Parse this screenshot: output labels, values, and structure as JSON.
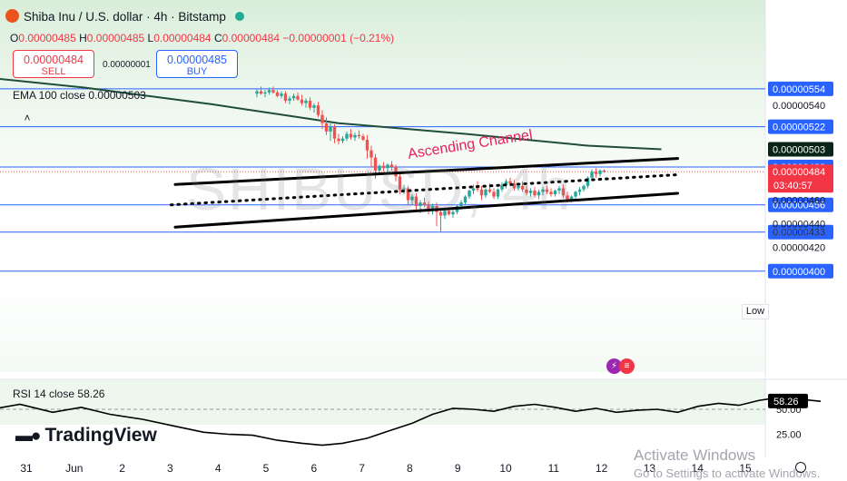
{
  "header": {
    "title": "Shiba Inu / U.S. dollar · 4h · Bitstamp",
    "ohlc": [
      {
        "k": "O",
        "v": "0.00000485"
      },
      {
        "k": "H",
        "v": "0.00000485"
      },
      {
        "k": "L",
        "v": "0.00000484"
      },
      {
        "k": "C",
        "v": "0.00000484"
      },
      {
        "k": "",
        "v": "−0.00000001 (−0.21%)"
      }
    ]
  },
  "trade": {
    "sell_price": "0.00000484",
    "sell_label": "SELL",
    "spread": "0.00000001",
    "buy_price": "0.00000485",
    "buy_label": "BUY"
  },
  "ema_legend": {
    "label": "EMA 100 close",
    "value": "0.00000503"
  },
  "rsi_legend": {
    "label": "RSI 14 close",
    "value": "58.26"
  },
  "brand": {
    "name": "TradingView"
  },
  "watermark": "SHIBUSD, 4h",
  "annotation": "Ascending Channel",
  "low_label": "Low",
  "os_overlay": {
    "line1": "Activate Windows",
    "line2": "Go to Settings to activate Windows."
  },
  "colors": {
    "up": "#26a69a",
    "down": "#ef5350",
    "ema": "#1f4d3a",
    "hline": "#2962ff",
    "channel": "#000000",
    "annotation": "#e91e63"
  },
  "chart_data": {
    "type": "candlestick",
    "title": "Shiba Inu / U.S. dollar · 4h · Bitstamp",
    "x_ticks": [
      "31",
      "Jun",
      "2",
      "3",
      "4",
      "5",
      "6",
      "7",
      "8",
      "9",
      "10",
      "11",
      "12",
      "13",
      "14",
      "15"
    ],
    "y_ticks": [
      "0.00000540",
      "0.00000460",
      "0.00000440",
      "0.00000420"
    ],
    "ylim": [
      3.945e-06,
      5.57e-06
    ],
    "horizontal_levels": [
      "0.00000554",
      "0.00000522",
      "0.00000488",
      "0.00000456",
      "0.00000433",
      "0.00000400"
    ],
    "current_price": {
      "value": "0.00000484",
      "countdown": "03:40:57"
    },
    "ema_label": "0.00000503",
    "low_value": "0.00000433",
    "candles": [
      [
        0,
        5.5,
        5.54,
        5.47,
        5.52
      ],
      [
        1,
        5.52,
        5.56,
        5.49,
        5.5
      ],
      [
        2,
        5.5,
        5.53,
        5.47,
        5.51
      ],
      [
        3,
        5.51,
        5.55,
        5.49,
        5.53
      ],
      [
        4,
        5.53,
        5.56,
        5.5,
        5.51
      ],
      [
        5,
        5.51,
        5.53,
        5.47,
        5.48
      ],
      [
        6,
        5.48,
        5.52,
        5.46,
        5.5
      ],
      [
        7,
        5.5,
        5.52,
        5.42,
        5.44
      ],
      [
        8,
        5.44,
        5.48,
        5.41,
        5.46
      ],
      [
        9,
        5.46,
        5.5,
        5.44,
        5.48
      ],
      [
        10,
        5.48,
        5.51,
        5.44,
        5.45
      ],
      [
        11,
        5.45,
        5.49,
        5.4,
        5.42
      ],
      [
        12,
        5.42,
        5.46,
        5.38,
        5.44
      ],
      [
        13,
        5.44,
        5.47,
        5.36,
        5.38
      ],
      [
        14,
        5.38,
        5.42,
        5.34,
        5.4
      ],
      [
        15,
        5.4,
        5.43,
        5.3,
        5.32
      ],
      [
        16,
        5.32,
        5.36,
        5.2,
        5.25
      ],
      [
        17,
        5.25,
        5.3,
        5.15,
        5.18
      ],
      [
        18,
        5.18,
        5.25,
        5.1,
        5.22
      ],
      [
        19,
        5.22,
        5.24,
        5.08,
        5.12
      ],
      [
        20,
        5.12,
        5.16,
        5.07,
        5.1
      ],
      [
        21,
        5.1,
        5.14,
        5.08,
        5.12
      ],
      [
        22,
        5.12,
        5.18,
        5.1,
        5.16
      ],
      [
        23,
        5.16,
        5.2,
        5.11,
        5.13
      ],
      [
        24,
        5.13,
        5.17,
        5.1,
        5.15
      ],
      [
        25,
        5.15,
        5.19,
        5.12,
        5.14
      ],
      [
        26,
        5.14,
        5.16,
        5.1,
        5.11
      ],
      [
        27,
        5.11,
        5.15,
        4.95,
        5.02
      ],
      [
        28,
        5.02,
        5.06,
        4.88,
        4.96
      ],
      [
        29,
        4.96,
        4.99,
        4.78,
        4.85
      ],
      [
        30,
        4.85,
        4.9,
        4.82,
        4.89
      ],
      [
        31,
        4.89,
        4.92,
        4.84,
        4.87
      ],
      [
        32,
        4.87,
        4.91,
        4.82,
        4.9
      ],
      [
        33,
        4.9,
        4.93,
        4.85,
        4.88
      ],
      [
        34,
        4.88,
        4.9,
        4.76,
        4.8
      ],
      [
        35,
        4.8,
        4.83,
        4.65,
        4.69
      ],
      [
        36,
        4.69,
        4.73,
        4.65,
        4.7
      ],
      [
        37,
        4.7,
        4.72,
        4.56,
        4.6
      ],
      [
        38,
        4.6,
        4.65,
        4.56,
        4.63
      ],
      [
        39,
        4.63,
        4.66,
        4.52,
        4.55
      ],
      [
        40,
        4.55,
        4.6,
        4.49,
        4.58
      ],
      [
        41,
        4.58,
        4.62,
        4.54,
        4.56
      ],
      [
        42,
        4.56,
        4.59,
        4.48,
        4.52
      ],
      [
        43,
        4.52,
        4.57,
        4.48,
        4.55
      ],
      [
        44,
        4.55,
        4.58,
        4.38,
        4.5
      ],
      [
        45,
        4.5,
        4.53,
        4.33,
        4.47
      ],
      [
        46,
        4.47,
        4.52,
        4.44,
        4.51
      ],
      [
        47,
        4.51,
        4.54,
        4.47,
        4.48
      ],
      [
        48,
        4.48,
        4.52,
        4.45,
        4.5
      ],
      [
        49,
        4.5,
        4.56,
        4.48,
        4.55
      ],
      [
        50,
        4.55,
        4.6,
        4.52,
        4.58
      ],
      [
        51,
        4.58,
        4.64,
        4.56,
        4.63
      ],
      [
        52,
        4.63,
        4.69,
        4.61,
        4.68
      ],
      [
        53,
        4.68,
        4.73,
        4.65,
        4.7
      ],
      [
        54,
        4.7,
        4.76,
        4.67,
        4.69
      ],
      [
        55,
        4.69,
        4.72,
        4.6,
        4.64
      ],
      [
        56,
        4.64,
        4.7,
        4.62,
        4.69
      ],
      [
        57,
        4.69,
        4.74,
        4.66,
        4.67
      ],
      [
        58,
        4.67,
        4.7,
        4.61,
        4.63
      ],
      [
        59,
        4.63,
        4.7,
        4.61,
        4.69
      ],
      [
        60,
        4.69,
        4.75,
        4.67,
        4.73
      ],
      [
        61,
        4.73,
        4.78,
        4.7,
        4.76
      ],
      [
        62,
        4.76,
        4.79,
        4.72,
        4.74
      ],
      [
        63,
        4.74,
        4.77,
        4.68,
        4.7
      ],
      [
        64,
        4.7,
        4.74,
        4.68,
        4.72
      ],
      [
        65,
        4.72,
        4.76,
        4.67,
        4.69
      ],
      [
        66,
        4.69,
        4.72,
        4.64,
        4.66
      ],
      [
        67,
        4.66,
        4.7,
        4.63,
        4.68
      ],
      [
        68,
        4.68,
        4.71,
        4.62,
        4.64
      ],
      [
        69,
        4.64,
        4.69,
        4.61,
        4.67
      ],
      [
        70,
        4.67,
        4.71,
        4.64,
        4.69
      ],
      [
        71,
        4.69,
        4.72,
        4.65,
        4.67
      ],
      [
        72,
        4.67,
        4.7,
        4.63,
        4.65
      ],
      [
        73,
        4.65,
        4.69,
        4.63,
        4.68
      ],
      [
        74,
        4.68,
        4.72,
        4.65,
        4.7
      ],
      [
        75,
        4.7,
        4.73,
        4.62,
        4.64
      ],
      [
        76,
        4.64,
        4.67,
        4.58,
        4.6
      ],
      [
        77,
        4.6,
        4.64,
        4.58,
        4.63
      ],
      [
        78,
        4.63,
        4.68,
        4.61,
        4.67
      ],
      [
        79,
        4.67,
        4.71,
        4.64,
        4.69
      ],
      [
        80,
        4.69,
        4.73,
        4.67,
        4.72
      ],
      [
        81,
        4.72,
        4.8,
        4.7,
        4.79
      ],
      [
        82,
        4.79,
        4.86,
        4.77,
        4.84
      ],
      [
        83,
        4.84,
        4.87,
        4.79,
        4.82
      ],
      [
        84,
        4.82,
        4.86,
        4.8,
        4.85
      ],
      [
        85,
        4.85,
        4.86,
        4.83,
        4.84
      ]
    ],
    "channel": {
      "upper": [
        [
          -20,
          4.732
        ],
        [
          103,
          4.952
        ]
      ],
      "middle": [
        [
          -21,
          4.56
        ],
        [
          103,
          4.815
        ]
      ],
      "lower": [
        [
          -20,
          4.372
        ],
        [
          103,
          4.658
        ]
      ]
    },
    "ema100": [
      [
        -103,
        5.7
      ],
      [
        -73,
        5.66
      ],
      [
        -42,
        5.55
      ],
      [
        -11,
        5.41
      ],
      [
        20,
        5.25
      ],
      [
        51,
        5.16
      ],
      [
        81,
        5.06
      ],
      [
        99,
        5.03
      ]
    ],
    "rsi": {
      "label": "RSI 14 close",
      "value": "58.26",
      "y_ticks": [
        "50.00",
        "25.00"
      ],
      "ylim": [
        0,
        100
      ],
      "points": [
        [
          -100,
          60
        ],
        [
          -94,
          52
        ],
        [
          -86,
          56
        ],
        [
          -80,
          64
        ],
        [
          -72,
          58
        ],
        [
          -65,
          50
        ],
        [
          -58,
          55
        ],
        [
          -50,
          47
        ],
        [
          -43,
          52
        ],
        [
          -36,
          45
        ],
        [
          -28,
          40
        ],
        [
          -20,
          33
        ],
        [
          -13,
          27
        ],
        [
          -7,
          25
        ],
        [
          -1,
          24
        ],
        [
          5,
          19
        ],
        [
          11,
          16
        ],
        [
          16,
          14
        ],
        [
          21,
          16
        ],
        [
          27,
          21
        ],
        [
          32,
          28
        ],
        [
          38,
          36
        ],
        [
          43,
          45
        ],
        [
          48,
          51
        ],
        [
          53,
          50
        ],
        [
          58,
          48
        ],
        [
          63,
          53
        ],
        [
          68,
          55
        ],
        [
          73,
          52
        ],
        [
          78,
          48
        ],
        [
          83,
          51
        ],
        [
          88,
          47
        ],
        [
          93,
          49
        ],
        [
          98,
          50
        ],
        [
          103,
          47
        ],
        [
          108,
          53
        ],
        [
          113,
          56
        ],
        [
          118,
          54
        ],
        [
          123,
          59
        ],
        [
          128,
          62
        ],
        [
          133,
          60
        ],
        [
          138,
          58
        ]
      ]
    }
  }
}
